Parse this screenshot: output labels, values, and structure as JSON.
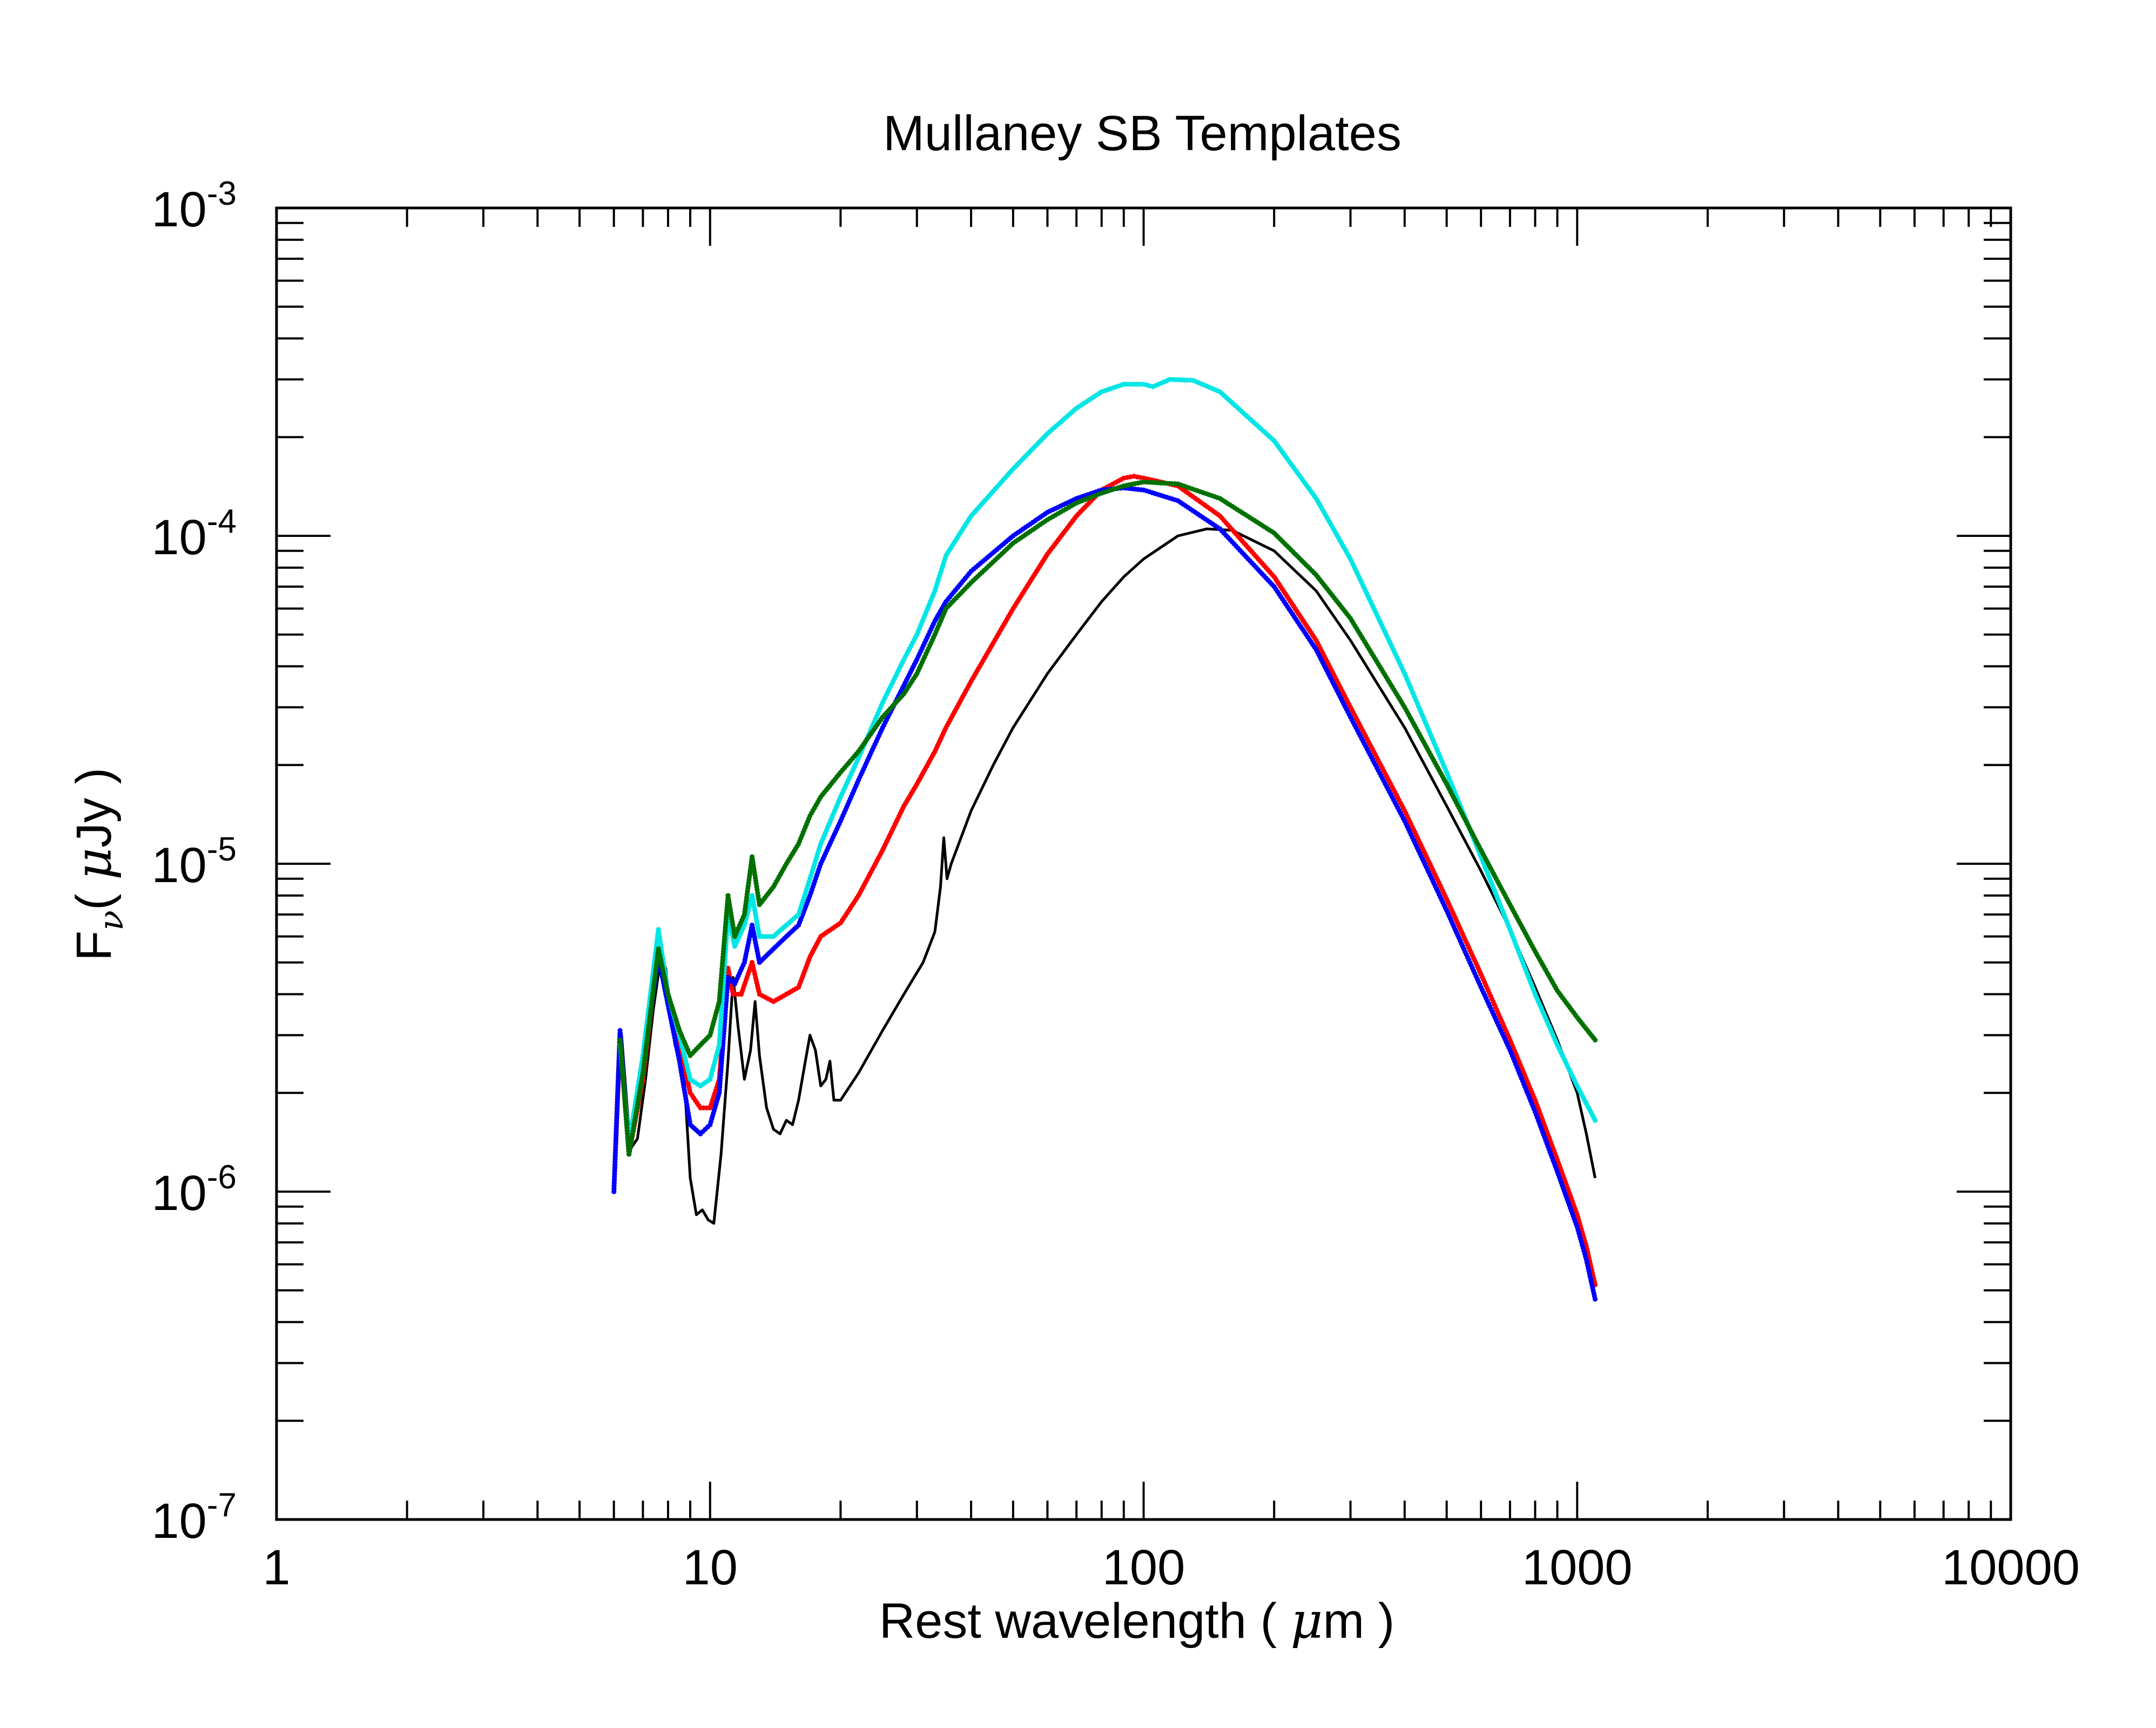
{
  "chart_data": {
    "type": "line",
    "title": "Mullaney SB Templates",
    "xlabel": {
      "pre": "Rest wavelength ( ",
      "sym": "μ",
      "post": "m )"
    },
    "ylabel": {
      "pre": "F",
      "sub": "ν",
      "mid": "( ",
      "sym": "μ",
      "post": "Jy )"
    },
    "x_scale": "log",
    "y_scale": "log",
    "xlim": [
      1,
      10000
    ],
    "ylim": [
      1e-07,
      0.001
    ],
    "grid": false,
    "x_tick_labels": [
      "1",
      "10",
      "100",
      "1000",
      "10000"
    ],
    "y_tick_labels": [
      {
        "base": "10",
        "exp": "-7"
      },
      {
        "base": "10",
        "exp": "-6"
      },
      {
        "base": "10",
        "exp": "-5"
      },
      {
        "base": "10",
        "exp": "-4"
      },
      {
        "base": "10",
        "exp": "-3"
      }
    ],
    "series": [
      {
        "color": "#000000",
        "style": "line",
        "points": [
          [
            6.0,
            1e-06
          ],
          [
            6.15,
            2.6e-06
          ],
          [
            6.25,
            3e-06
          ],
          [
            6.4,
            2e-06
          ],
          [
            6.55,
            1.35e-06
          ],
          [
            6.8,
            1.45e-06
          ],
          [
            7.1,
            2.2e-06
          ],
          [
            7.4,
            3.6e-06
          ],
          [
            7.7,
            5.2e-06
          ],
          [
            7.9,
            4.8e-06
          ],
          [
            8.1,
            3.5e-06
          ],
          [
            8.3,
            2.8e-06
          ],
          [
            8.6,
            2.9e-06
          ],
          [
            8.8,
            1.8e-06
          ],
          [
            9.0,
            1.1e-06
          ],
          [
            9.3,
            8.5e-07
          ],
          [
            9.6,
            8.8e-07
          ],
          [
            9.9,
            8.2e-07
          ],
          [
            10.2,
            8e-07
          ],
          [
            10.6,
            1.3e-06
          ],
          [
            11.0,
            2.5e-06
          ],
          [
            11.3,
            4.5e-06
          ],
          [
            11.6,
            3.2e-06
          ],
          [
            12.0,
            2.2e-06
          ],
          [
            12.4,
            2.7e-06
          ],
          [
            12.7,
            3.8e-06
          ],
          [
            13.0,
            2.6e-06
          ],
          [
            13.5,
            1.8e-06
          ],
          [
            14.0,
            1.55e-06
          ],
          [
            14.5,
            1.5e-06
          ],
          [
            15.0,
            1.65e-06
          ],
          [
            15.5,
            1.6e-06
          ],
          [
            16.0,
            1.9e-06
          ],
          [
            16.5,
            2.4e-06
          ],
          [
            17.0,
            3e-06
          ],
          [
            17.5,
            2.7e-06
          ],
          [
            18.0,
            2.1e-06
          ],
          [
            18.5,
            2.2e-06
          ],
          [
            18.9,
            2.5e-06
          ],
          [
            19.3,
            1.9e-06
          ],
          [
            20.0,
            1.9e-06
          ],
          [
            22.0,
            2.3e-06
          ],
          [
            25.0,
            3.1e-06
          ],
          [
            28.0,
            4e-06
          ],
          [
            31.0,
            5e-06
          ],
          [
            33.0,
            6.2e-06
          ],
          [
            34.0,
            8.5e-06
          ],
          [
            34.6,
            1.2e-05
          ],
          [
            35.2,
            9e-06
          ],
          [
            36.0,
            1e-05
          ],
          [
            40.0,
            1.45e-05
          ],
          [
            45.0,
            2e-05
          ],
          [
            50.0,
            2.6e-05
          ],
          [
            60.0,
            3.8e-05
          ],
          [
            70.0,
            5e-05
          ],
          [
            80.0,
            6.3e-05
          ],
          [
            90.0,
            7.5e-05
          ],
          [
            100.0,
            8.5e-05
          ],
          [
            120.0,
            0.0001
          ],
          [
            140.0,
            0.000105
          ],
          [
            160.0,
            0.000104
          ],
          [
            200.0,
            9e-05
          ],
          [
            250.0,
            6.8e-05
          ],
          [
            300.0,
            4.8e-05
          ],
          [
            400.0,
            2.6e-05
          ],
          [
            500.0,
            1.5e-05
          ],
          [
            600.0,
            9.5e-06
          ],
          [
            700.0,
            6.3e-06
          ],
          [
            800.0,
            4.2e-06
          ],
          [
            900.0,
            2.9e-06
          ],
          [
            1000.0,
            2e-06
          ],
          [
            1050.0,
            1.5e-06
          ],
          [
            1100.0,
            1.1e-06
          ]
        ]
      },
      {
        "color": "#ff0000",
        "style": "dots",
        "points": [
          [
            6.0,
            1e-06
          ],
          [
            6.2,
            3e-06
          ],
          [
            6.5,
            1.3e-06
          ],
          [
            7.0,
            2.2e-06
          ],
          [
            7.6,
            5.5e-06
          ],
          [
            8.0,
            4e-06
          ],
          [
            8.5,
            2.8e-06
          ],
          [
            9.0,
            2e-06
          ],
          [
            9.5,
            1.8e-06
          ],
          [
            10.0,
            1.8e-06
          ],
          [
            10.5,
            2.2e-06
          ],
          [
            11.0,
            4.8e-06
          ],
          [
            11.3,
            4e-06
          ],
          [
            11.8,
            4e-06
          ],
          [
            12.5,
            5e-06
          ],
          [
            13.0,
            4e-06
          ],
          [
            14.0,
            3.8e-06
          ],
          [
            15.0,
            4e-06
          ],
          [
            16.0,
            4.2e-06
          ],
          [
            17.0,
            5.2e-06
          ],
          [
            18.0,
            6e-06
          ],
          [
            20.0,
            6.6e-06
          ],
          [
            22.0,
            8e-06
          ],
          [
            25.0,
            1.1e-05
          ],
          [
            28.0,
            1.5e-05
          ],
          [
            30.0,
            1.75e-05
          ],
          [
            33.0,
            2.2e-05
          ],
          [
            35.0,
            2.6e-05
          ],
          [
            40.0,
            3.6e-05
          ],
          [
            50.0,
            6e-05
          ],
          [
            60.0,
            8.8e-05
          ],
          [
            70.0,
            0.000115
          ],
          [
            80.0,
            0.000138
          ],
          [
            90.0,
            0.00015
          ],
          [
            95.0,
            0.000152
          ],
          [
            100.0,
            0.00015
          ],
          [
            120.0,
            0.000142
          ],
          [
            150.0,
            0.000115
          ],
          [
            200.0,
            7.5e-05
          ],
          [
            250.0,
            4.8e-05
          ],
          [
            300.0,
            3e-05
          ],
          [
            400.0,
            1.45e-05
          ],
          [
            500.0,
            7.8e-06
          ],
          [
            600.0,
            4.6e-06
          ],
          [
            700.0,
            2.9e-06
          ],
          [
            800.0,
            1.9e-06
          ],
          [
            900.0,
            1.25e-06
          ],
          [
            1000.0,
            8.5e-07
          ],
          [
            1050.0,
            6.8e-07
          ],
          [
            1100.0,
            5.2e-07
          ]
        ]
      },
      {
        "color": "#0000ff",
        "style": "dots",
        "points": [
          [
            6.0,
            1e-06
          ],
          [
            6.2,
            3.1e-06
          ],
          [
            6.5,
            1.3e-06
          ],
          [
            7.0,
            2.4e-06
          ],
          [
            7.6,
            5.2e-06
          ],
          [
            8.0,
            3.7e-06
          ],
          [
            8.5,
            2.5e-06
          ],
          [
            9.0,
            1.6e-06
          ],
          [
            9.5,
            1.5e-06
          ],
          [
            10.0,
            1.6e-06
          ],
          [
            10.5,
            2e-06
          ],
          [
            11.0,
            4.5e-06
          ],
          [
            11.4,
            4.3e-06
          ],
          [
            12.0,
            5e-06
          ],
          [
            12.5,
            6.5e-06
          ],
          [
            13.0,
            5e-06
          ],
          [
            14.0,
            5.5e-06
          ],
          [
            15.0,
            6e-06
          ],
          [
            16.0,
            6.5e-06
          ],
          [
            17.0,
            8e-06
          ],
          [
            18.0,
            1e-05
          ],
          [
            20.0,
            1.35e-05
          ],
          [
            22.0,
            1.8e-05
          ],
          [
            25.0,
            2.6e-05
          ],
          [
            28.0,
            3.5e-05
          ],
          [
            30.0,
            4.2e-05
          ],
          [
            33.0,
            5.5e-05
          ],
          [
            35.0,
            6.3e-05
          ],
          [
            40.0,
            7.8e-05
          ],
          [
            50.0,
            0.0001
          ],
          [
            60.0,
            0.000118
          ],
          [
            70.0,
            0.00013
          ],
          [
            80.0,
            0.000138
          ],
          [
            90.0,
            0.00014
          ],
          [
            100.0,
            0.000138
          ],
          [
            120.0,
            0.000128
          ],
          [
            150.0,
            0.000105
          ],
          [
            200.0,
            7e-05
          ],
          [
            250.0,
            4.5e-05
          ],
          [
            300.0,
            2.8e-05
          ],
          [
            400.0,
            1.35e-05
          ],
          [
            500.0,
            7.2e-06
          ],
          [
            600.0,
            4.2e-06
          ],
          [
            700.0,
            2.7e-06
          ],
          [
            800.0,
            1.75e-06
          ],
          [
            900.0,
            1.15e-06
          ],
          [
            1000.0,
            7.8e-07
          ],
          [
            1050.0,
            6.2e-07
          ],
          [
            1100.0,
            4.7e-07
          ]
        ]
      },
      {
        "color": "#00e5e5",
        "style": "dots",
        "points": [
          [
            6.2,
            2.8e-06
          ],
          [
            6.5,
            1.4e-06
          ],
          [
            7.0,
            2.6e-06
          ],
          [
            7.6,
            6.3e-06
          ],
          [
            8.0,
            4e-06
          ],
          [
            8.5,
            3e-06
          ],
          [
            9.0,
            2.2e-06
          ],
          [
            9.5,
            2.1e-06
          ],
          [
            10.0,
            2.2e-06
          ],
          [
            10.5,
            2.8e-06
          ],
          [
            11.0,
            7e-06
          ],
          [
            11.4,
            5.6e-06
          ],
          [
            12.0,
            6.5e-06
          ],
          [
            12.5,
            8e-06
          ],
          [
            13.0,
            6e-06
          ],
          [
            14.0,
            6e-06
          ],
          [
            15.0,
            6.5e-06
          ],
          [
            16.0,
            7e-06
          ],
          [
            17.0,
            9e-06
          ],
          [
            18.0,
            1.15e-05
          ],
          [
            20.0,
            1.6e-05
          ],
          [
            22.0,
            2.1e-05
          ],
          [
            25.0,
            3.1e-05
          ],
          [
            28.0,
            4.2e-05
          ],
          [
            30.0,
            5e-05
          ],
          [
            33.0,
            6.8e-05
          ],
          [
            35.0,
            8.7e-05
          ],
          [
            40.0,
            0.000115
          ],
          [
            50.0,
            0.00016
          ],
          [
            60.0,
            0.000205
          ],
          [
            70.0,
            0.000245
          ],
          [
            80.0,
            0.000275
          ],
          [
            90.0,
            0.00029
          ],
          [
            100.0,
            0.00029
          ],
          [
            105.0,
            0.000285
          ],
          [
            115.0,
            0.0003
          ],
          [
            130.0,
            0.000298
          ],
          [
            150.0,
            0.000275
          ],
          [
            200.0,
            0.000195
          ],
          [
            250.0,
            0.00013
          ],
          [
            300.0,
            8.5e-05
          ],
          [
            400.0,
            3.8e-05
          ],
          [
            500.0,
            1.9e-05
          ],
          [
            600.0,
            1.05e-05
          ],
          [
            700.0,
            6.3e-06
          ],
          [
            800.0,
            4e-06
          ],
          [
            900.0,
            2.8e-06
          ],
          [
            1000.0,
            2.1e-06
          ],
          [
            1100.0,
            1.65e-06
          ]
        ]
      },
      {
        "color": "#007000",
        "style": "dots",
        "points": [
          [
            6.2,
            2.9e-06
          ],
          [
            6.5,
            1.3e-06
          ],
          [
            7.0,
            2.3e-06
          ],
          [
            7.6,
            5.5e-06
          ],
          [
            8.0,
            4e-06
          ],
          [
            8.5,
            3.1e-06
          ],
          [
            9.0,
            2.6e-06
          ],
          [
            9.5,
            2.8e-06
          ],
          [
            10.0,
            3e-06
          ],
          [
            10.5,
            3.8e-06
          ],
          [
            11.0,
            8e-06
          ],
          [
            11.4,
            6e-06
          ],
          [
            12.0,
            7e-06
          ],
          [
            12.5,
            1.05e-05
          ],
          [
            13.0,
            7.5e-06
          ],
          [
            14.0,
            8.5e-06
          ],
          [
            15.0,
            1e-05
          ],
          [
            16.0,
            1.15e-05
          ],
          [
            17.0,
            1.4e-05
          ],
          [
            18.0,
            1.6e-05
          ],
          [
            20.0,
            1.9e-05
          ],
          [
            22.0,
            2.2e-05
          ],
          [
            25.0,
            2.8e-05
          ],
          [
            28.0,
            3.3e-05
          ],
          [
            30.0,
            3.8e-05
          ],
          [
            33.0,
            5e-05
          ],
          [
            35.0,
            6e-05
          ],
          [
            40.0,
            7.2e-05
          ],
          [
            50.0,
            9.5e-05
          ],
          [
            60.0,
            0.000112
          ],
          [
            70.0,
            0.000126
          ],
          [
            80.0,
            0.000135
          ],
          [
            90.0,
            0.000142
          ],
          [
            100.0,
            0.000146
          ],
          [
            120.0,
            0.000144
          ],
          [
            150.0,
            0.00013
          ],
          [
            200.0,
            0.000102
          ],
          [
            250.0,
            7.6e-05
          ],
          [
            300.0,
            5.6e-05
          ],
          [
            400.0,
            3e-05
          ],
          [
            500.0,
            1.75e-05
          ],
          [
            600.0,
            1.1e-05
          ],
          [
            700.0,
            7.5e-06
          ],
          [
            800.0,
            5.4e-06
          ],
          [
            900.0,
            4.1e-06
          ],
          [
            1000.0,
            3.4e-06
          ],
          [
            1100.0,
            2.9e-06
          ]
        ]
      }
    ]
  }
}
